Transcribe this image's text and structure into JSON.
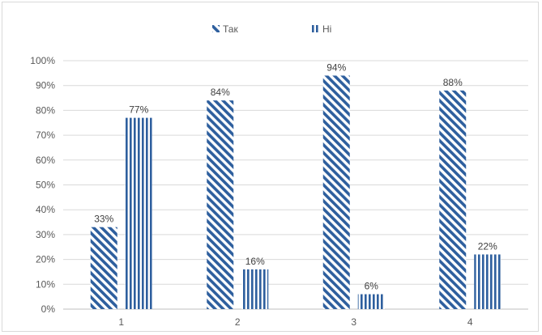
{
  "chart_data": {
    "type": "bar",
    "categories": [
      "1",
      "2",
      "3",
      "4"
    ],
    "series": [
      {
        "name": "Так",
        "values": [
          33,
          84,
          94,
          88
        ],
        "pattern": "diagonal-stripes",
        "color": "#2e5f9e"
      },
      {
        "name": "Ні",
        "values": [
          77,
          16,
          6,
          22
        ],
        "pattern": "vertical-stripes",
        "color": "#2e5f9e"
      }
    ],
    "data_labels": [
      [
        "33%",
        "84%",
        "94%",
        "88%"
      ],
      [
        "77%",
        "16%",
        "6%",
        "22%"
      ]
    ],
    "y_ticks": [
      "0%",
      "10%",
      "20%",
      "30%",
      "40%",
      "50%",
      "60%",
      "70%",
      "80%",
      "90%",
      "100%"
    ],
    "ylim": [
      0,
      100
    ],
    "grid": true,
    "legend": "top-center",
    "title": "",
    "xlabel": "",
    "ylabel": ""
  }
}
